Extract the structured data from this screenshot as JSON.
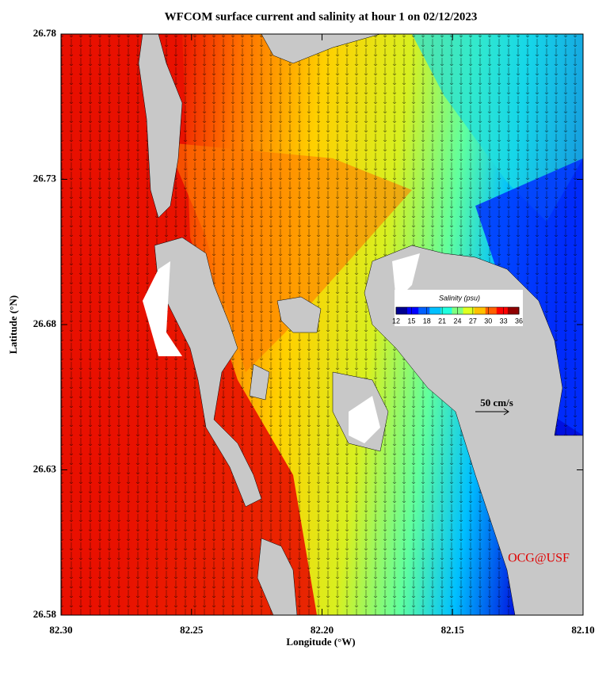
{
  "chart_data": {
    "type": "map",
    "title": "WFCOM surface current and salinity at hour 1 on 02/12/2023",
    "x_label": "Longitude (°W)",
    "y_label": "Latitude (°N)",
    "xlim": [
      82.3,
      82.1
    ],
    "xticks": [
      {
        "value": 82.3,
        "label": "82.30"
      },
      {
        "value": 82.25,
        "label": "82.25"
      },
      {
        "value": 82.2,
        "label": "82.20"
      },
      {
        "value": 82.15,
        "label": "82.15"
      },
      {
        "value": 82.1,
        "label": "82.10"
      }
    ],
    "ylim": [
      26.58,
      26.78
    ],
    "yticks": [
      26.58,
      26.63,
      26.68,
      26.73,
      26.78
    ],
    "colorbar": {
      "label": "Salinity (psu)",
      "lim": [
        12,
        36
      ],
      "ticks": [
        12,
        15,
        18,
        21,
        24,
        27,
        30,
        33,
        36
      ],
      "colors": [
        "#00008f",
        "#0000ff",
        "#0060ff",
        "#00c0ff",
        "#20ffdf",
        "#80ff80",
        "#dfff20",
        "#ffc000",
        "#ff6000",
        "#ff0000",
        "#8f0000"
      ]
    },
    "scale_label": "50 cm/s",
    "credit": "OCG@USF"
  }
}
